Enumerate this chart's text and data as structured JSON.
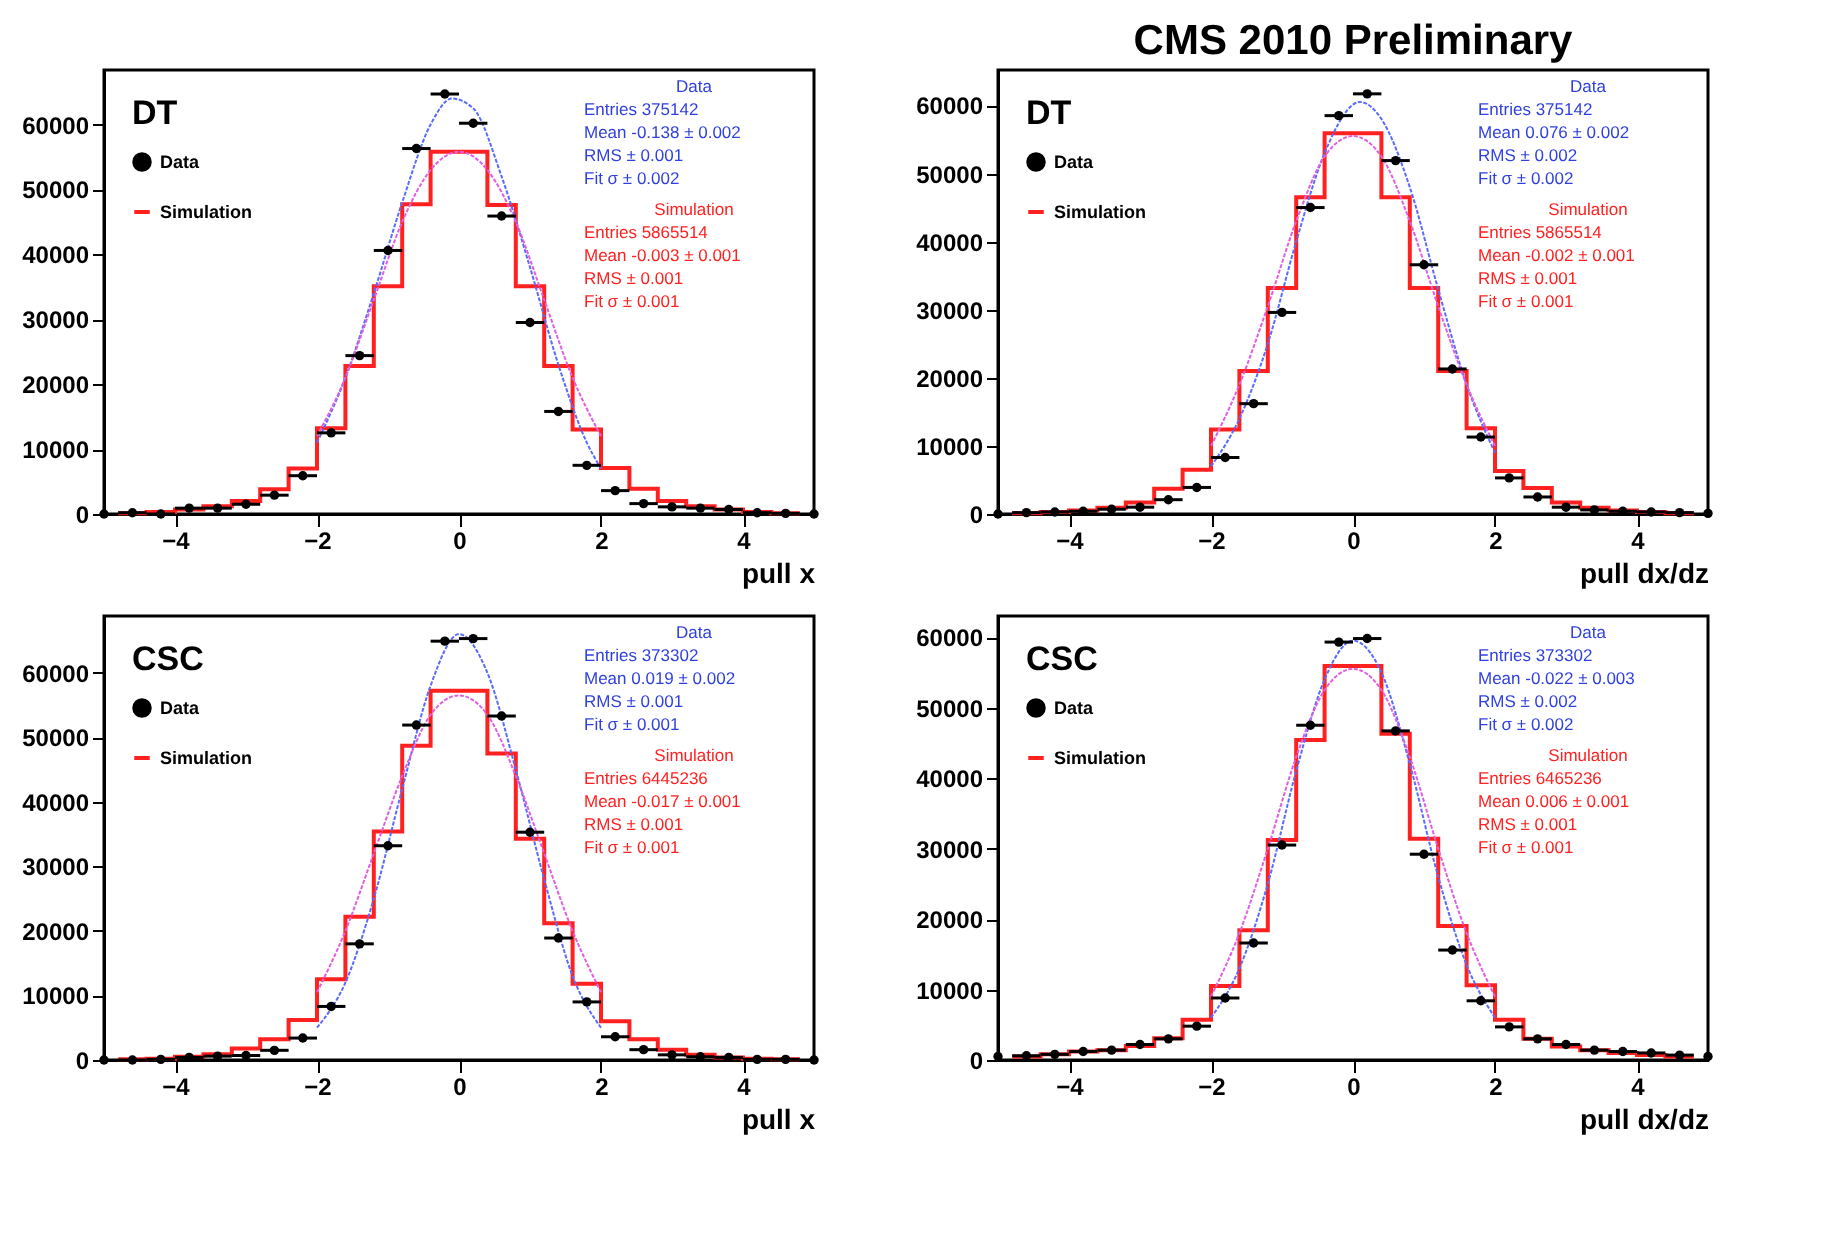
{
  "chart_data": [
    {
      "type": "histogram",
      "legend_title": "DT",
      "xlabel": "pull x",
      "xlim": [
        -5,
        5
      ],
      "ylim": [
        0,
        68400
      ],
      "xticks": [
        -4,
        -2,
        0,
        2,
        4
      ],
      "yticks": [
        0,
        10000,
        20000,
        30000,
        40000,
        50000,
        60000
      ],
      "legend": "top left",
      "series": [
        {
          "name": "Data",
          "type": "scatter",
          "marker": "circle",
          "color": "#000000",
          "x": [
            -5,
            -4.6,
            -4.2,
            -3.8,
            -3.4,
            -3,
            -2.6,
            -2.2,
            -1.8,
            -1.4,
            -1,
            -0.6,
            -0.2,
            0.2,
            0.6,
            1,
            1.4,
            1.8,
            2.2,
            2.6,
            3,
            3.4,
            3.8,
            4.2,
            4.6,
            5
          ],
          "values": [
            0,
            200,
            0,
            900,
            900,
            1500,
            2900,
            5900,
            12500,
            24400,
            40600,
            56300,
            64700,
            60200,
            45900,
            29500,
            15800,
            7500,
            3600,
            1600,
            1100,
            900,
            700,
            200,
            100,
            0
          ],
          "xerrors": [
            null,
            0.2,
            0.2,
            0.2,
            0.2,
            0.2,
            0.2,
            0.2,
            0.2,
            0.2,
            0.2,
            0.2,
            0.2,
            0.2,
            0.2,
            0.2,
            0.2,
            0.2,
            0.2,
            0.2,
            0.2,
            0.2,
            0.2,
            0.2,
            0.2,
            null
          ]
        },
        {
          "name": "Simulation",
          "color": "#ff2020",
          "bins": [
            -4.8,
            -4.4,
            -4,
            -3.6,
            -3.2,
            -2.8,
            -2.4,
            -2,
            -1.6,
            -1.2,
            -0.8,
            -0.4,
            0,
            0.4,
            0.8,
            1.2,
            1.6,
            2,
            2.4,
            2.8,
            3.2,
            3.6,
            4,
            4.4,
            4.8
          ],
          "values": [
            100,
            300,
            700,
            1200,
            2000,
            3800,
            7000,
            13200,
            22800,
            35100,
            47700,
            55800,
            55800,
            47600,
            35100,
            22800,
            13000,
            7100,
            3900,
            2000,
            1200,
            700,
            300,
            100
          ]
        },
        {
          "type": "line",
          "color": "#5a6cff",
          "line_style": "dashed",
          "x": [
            -2,
            -1.6,
            -1.2,
            -0.8,
            -0.4,
            -0.1,
            0.2,
            0.6,
            1,
            1.4,
            1.8,
            2
          ],
          "values": [
            11000,
            21000,
            34000,
            48000,
            60000,
            64000,
            62500,
            52000,
            38000,
            23000,
            11000,
            7000
          ]
        },
        {
          "type": "line",
          "color": "#e060e0",
          "line_style": "dashed",
          "x": [
            -2,
            -1.6,
            -1.2,
            -0.8,
            -0.4,
            0,
            0.4,
            0.8,
            1.2,
            1.6,
            2
          ],
          "values": [
            12000,
            21000,
            33000,
            45000,
            53000,
            55800,
            53000,
            45000,
            33000,
            21000,
            12000
          ]
        }
      ],
      "annotations": [
        "Data",
        "Entries 375142",
        "Mean -0.138 ± 0.002",
        "RMS ± 0.001",
        "Fit σ ± 0.002",
        "Simulation",
        "Entries 5865514",
        "Mean -0.003 ± 0.001",
        "RMS ± 0.001",
        "Fit σ ± 0.001"
      ]
    },
    {
      "type": "histogram",
      "title": "CMS 2010 Preliminary",
      "legend_title": "DT",
      "xlabel": "pull dx/dz",
      "xlim": [
        -5,
        5
      ],
      "ylim": [
        0,
        65200
      ],
      "xticks": [
        -4,
        -2,
        0,
        2,
        4
      ],
      "yticks": [
        0,
        10000,
        20000,
        30000,
        40000,
        50000,
        60000
      ],
      "legend": "top left",
      "series": [
        {
          "name": "Data",
          "type": "scatter",
          "marker": "circle",
          "color": "#000000",
          "x": [
            -5,
            -4.6,
            -4.2,
            -3.8,
            -3.4,
            -3,
            -2.6,
            -2.2,
            -1.8,
            -1.4,
            -1,
            -0.6,
            -0.2,
            0.2,
            0.6,
            1,
            1.4,
            1.8,
            2.2,
            2.6,
            3,
            3.4,
            3.8,
            4.2,
            4.6,
            5
          ],
          "values": [
            0,
            200,
            300,
            400,
            700,
            1000,
            2100,
            3900,
            8300,
            16200,
            29600,
            45000,
            58500,
            61700,
            51900,
            36600,
            21300,
            11300,
            5300,
            2500,
            1000,
            600,
            400,
            300,
            200,
            100
          ],
          "xerrors": [
            null,
            0.2,
            0.2,
            0.2,
            0.2,
            0.2,
            0.2,
            0.2,
            0.2,
            0.2,
            0.2,
            0.2,
            0.2,
            0.2,
            0.2,
            0.2,
            0.2,
            0.2,
            0.2,
            0.2,
            0.2,
            0.2,
            0.2,
            0.2,
            0.2,
            null
          ]
        },
        {
          "name": "Simulation",
          "color": "#ff2020",
          "bins": [
            -4.8,
            -4.4,
            -4,
            -3.6,
            -3.2,
            -2.8,
            -2.4,
            -2,
            -1.6,
            -1.2,
            -0.8,
            -0.4,
            0,
            0.4,
            0.8,
            1.2,
            1.6,
            2,
            2.4,
            2.8,
            3.2,
            3.6,
            4,
            4.4,
            4.8
          ],
          "values": [
            100,
            300,
            500,
            900,
            1700,
            3700,
            6500,
            12400,
            21000,
            33200,
            46500,
            55900,
            55900,
            46500,
            33200,
            21000,
            12600,
            6300,
            3800,
            1700,
            900,
            500,
            300,
            100
          ]
        },
        {
          "type": "line",
          "color": "#5a6cff",
          "line_style": "dashed",
          "x": [
            -2,
            -1.6,
            -1.2,
            -0.8,
            -0.4,
            0.1,
            0.4,
            0.8,
            1.2,
            1.6,
            2
          ],
          "values": [
            7000,
            14000,
            25000,
            40000,
            53000,
            60500,
            58000,
            48000,
            33000,
            19000,
            9000
          ]
        },
        {
          "type": "line",
          "color": "#e060e0",
          "line_style": "dashed",
          "x": [
            -2,
            -1.6,
            -1.2,
            -0.8,
            -0.4,
            0,
            0.4,
            0.8,
            1.2,
            1.6,
            2
          ],
          "values": [
            10000,
            19000,
            30500,
            43000,
            52500,
            55500,
            52500,
            43000,
            30500,
            19000,
            10000
          ]
        }
      ],
      "annotations": [
        "Data",
        "Entries 375142",
        "Mean 0.076 ± 0.002",
        "RMS ± 0.002",
        "Fit σ ± 0.002",
        "Simulation",
        "Entries 5865514",
        "Mean -0.002 ± 0.001",
        "RMS ± 0.001",
        "Fit σ ± 0.001"
      ]
    },
    {
      "type": "histogram",
      "legend_title": "CSC",
      "xlabel": "pull x",
      "xlim": [
        -5,
        5
      ],
      "ylim": [
        0,
        68800
      ],
      "xticks": [
        -4,
        -2,
        0,
        2,
        4
      ],
      "yticks": [
        0,
        10000,
        20000,
        30000,
        40000,
        50000,
        60000
      ],
      "legend": "top left",
      "series": [
        {
          "name": "Data",
          "type": "scatter",
          "marker": "circle",
          "color": "#000000",
          "x": [
            -5,
            -4.6,
            -4.2,
            -3.8,
            -3.4,
            -3,
            -2.6,
            -2.2,
            -1.8,
            -1.4,
            -1,
            -0.6,
            -0.2,
            0.2,
            0.6,
            1,
            1.4,
            1.8,
            2.2,
            2.6,
            3,
            3.4,
            3.8,
            4.2,
            4.6,
            5
          ],
          "values": [
            0,
            0,
            100,
            400,
            600,
            700,
            1500,
            3400,
            8300,
            18000,
            33200,
            51900,
            64900,
            65300,
            53300,
            35300,
            18900,
            9000,
            3600,
            1600,
            800,
            500,
            400,
            100,
            100,
            0
          ],
          "xerrors": [
            null,
            0.2,
            0.2,
            0.2,
            0.2,
            0.2,
            0.2,
            0.2,
            0.2,
            0.2,
            0.2,
            0.2,
            0.2,
            0.2,
            0.2,
            0.2,
            0.2,
            0.2,
            0.2,
            0.2,
            0.2,
            0.2,
            0.2,
            0.2,
            0.2,
            null
          ]
        },
        {
          "name": "Simulation",
          "color": "#ff2020",
          "bins": [
            -4.8,
            -4.4,
            -4,
            -3.6,
            -3.2,
            -2.8,
            -2.4,
            -2,
            -1.6,
            -1.2,
            -0.8,
            -0.4,
            0,
            0.4,
            0.8,
            1.2,
            1.6,
            2,
            2.4,
            2.8,
            3.2,
            3.6,
            4,
            4.4,
            4.8
          ],
          "values": [
            100,
            200,
            500,
            900,
            1800,
            3200,
            6200,
            12500,
            22200,
            35400,
            48700,
            57200,
            57200,
            47500,
            34300,
            21200,
            11800,
            6000,
            3200,
            1600,
            800,
            400,
            200,
            100
          ]
        },
        {
          "type": "line",
          "color": "#5a6cff",
          "line_style": "dashed",
          "x": [
            -2,
            -1.6,
            -1.2,
            -0.8,
            -0.4,
            0,
            0.4,
            0.8,
            1.2,
            1.6,
            2
          ],
          "values": [
            5000,
            12000,
            25000,
            42000,
            58000,
            66000,
            60000,
            45000,
            28000,
            13000,
            5000
          ]
        },
        {
          "type": "line",
          "color": "#e060e0",
          "line_style": "dashed",
          "x": [
            -2,
            -1.6,
            -1.2,
            -0.8,
            -0.4,
            0,
            0.4,
            0.8,
            1.2,
            1.6,
            2
          ],
          "values": [
            10500,
            20000,
            32000,
            44000,
            53500,
            56500,
            53500,
            44000,
            32000,
            20000,
            10500
          ]
        }
      ],
      "annotations": [
        "Data",
        "Entries 373302",
        "Mean 0.019 ± 0.002",
        "RMS ± 0.001",
        "Fit σ ± 0.001",
        "Simulation",
        "Entries 6445236",
        "Mean -0.017 ± 0.001",
        "RMS ± 0.001",
        "Fit σ ± 0.001"
      ]
    },
    {
      "type": "histogram",
      "legend_title": "CSC",
      "xlabel": "pull dx/dz",
      "xlim": [
        -5,
        5
      ],
      "ylim": [
        0,
        63000
      ],
      "xticks": [
        -4,
        -2,
        0,
        2,
        4
      ],
      "yticks": [
        0,
        10000,
        20000,
        30000,
        40000,
        50000,
        60000
      ],
      "legend": "top left",
      "series": [
        {
          "name": "Data",
          "type": "scatter",
          "marker": "circle",
          "color": "#000000",
          "x": [
            -5,
            -4.6,
            -4.2,
            -3.8,
            -3.4,
            -3,
            -2.6,
            -2.2,
            -1.8,
            -1.4,
            -1,
            -0.6,
            -0.2,
            0.2,
            0.6,
            1,
            1.4,
            1.8,
            2.2,
            2.6,
            3,
            3.4,
            3.8,
            4.2,
            4.6,
            5
          ],
          "values": [
            500,
            600,
            800,
            1200,
            1400,
            2200,
            3000,
            4800,
            8800,
            16600,
            30500,
            47500,
            59300,
            59800,
            46700,
            29200,
            15600,
            8400,
            4700,
            3000,
            2200,
            1400,
            1200,
            1000,
            700,
            500
          ],
          "xerrors": [
            null,
            0.2,
            0.2,
            0.2,
            0.2,
            0.2,
            0.2,
            0.2,
            0.2,
            0.2,
            0.2,
            0.2,
            0.2,
            0.2,
            0.2,
            0.2,
            0.2,
            0.2,
            0.2,
            0.2,
            0.2,
            0.2,
            0.2,
            0.2,
            0.2,
            null
          ]
        },
        {
          "name": "Simulation",
          "color": "#ff2020",
          "bins": [
            -4.8,
            -4.4,
            -4,
            -3.6,
            -3.2,
            -2.8,
            -2.4,
            -2,
            -1.6,
            -1.2,
            -0.8,
            -0.4,
            0,
            0.4,
            0.8,
            1.2,
            1.6,
            2,
            2.4,
            2.8,
            3.2,
            3.6,
            4,
            4.4,
            4.8
          ],
          "values": [
            500,
            800,
            1200,
            1400,
            2000,
            3100,
            5700,
            10500,
            18400,
            31200,
            45400,
            55900,
            55900,
            46300,
            31400,
            19000,
            10600,
            5700,
            3000,
            1900,
            1400,
            1000,
            700,
            500
          ]
        },
        {
          "type": "line",
          "color": "#5a6cff",
          "line_style": "dashed",
          "x": [
            -2,
            -1.6,
            -1.2,
            -0.8,
            -0.4,
            0,
            0.4,
            0.8,
            1.2,
            1.6,
            2
          ],
          "values": [
            6000,
            13000,
            25000,
            41000,
            54000,
            59500,
            55000,
            42000,
            26000,
            13500,
            6000
          ]
        },
        {
          "type": "line",
          "color": "#e060e0",
          "line_style": "dashed",
          "x": [
            -2,
            -1.6,
            -1.2,
            -0.8,
            -0.4,
            0,
            0.4,
            0.8,
            1.2,
            1.6,
            2
          ],
          "values": [
            9000,
            18000,
            30000,
            43000,
            52500,
            55500,
            52500,
            43000,
            30000,
            18000,
            9000
          ]
        }
      ],
      "annotations": [
        "Data",
        "Entries 373302",
        "Mean -0.022 ± 0.003",
        "RMS ± 0.002",
        "Fit σ ± 0.002",
        "Simulation",
        "Entries 6465236",
        "Mean 0.006 ± 0.001",
        "RMS ± 0.001",
        "Fit σ ± 0.001"
      ]
    }
  ]
}
